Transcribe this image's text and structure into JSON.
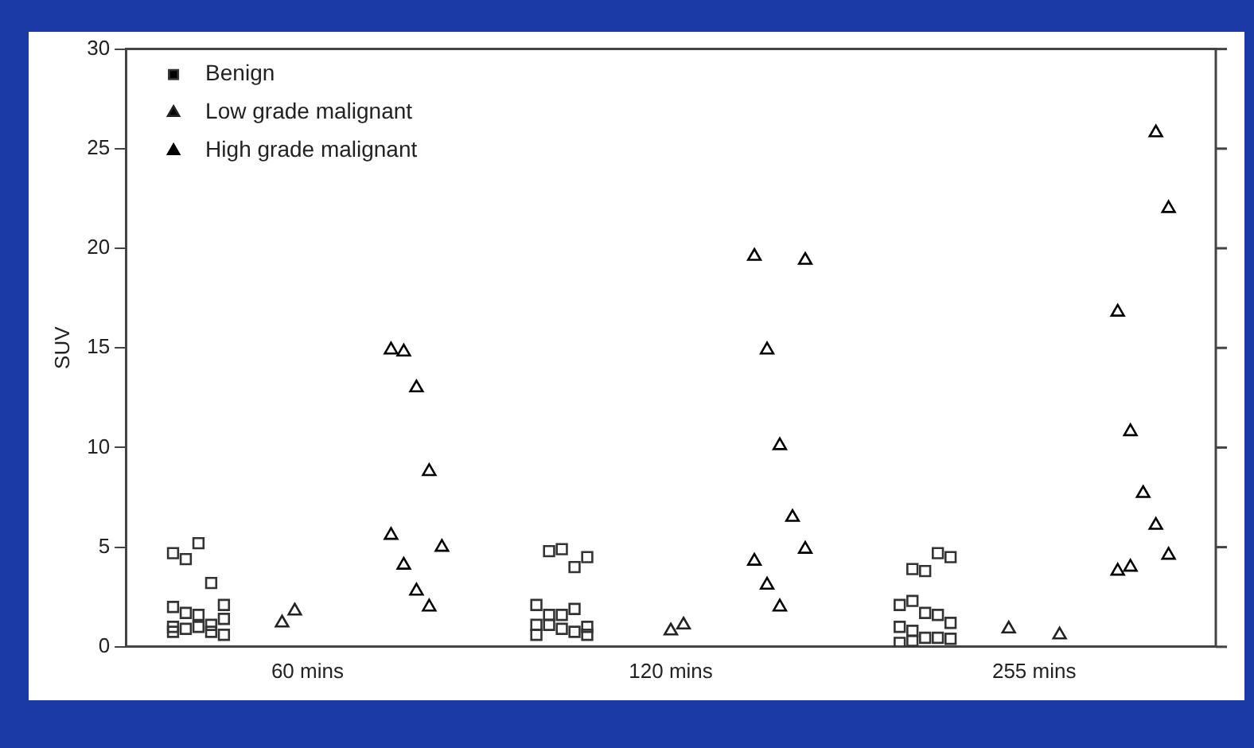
{
  "chart_data": {
    "type": "scatter",
    "ylabel": "SUV",
    "legend": "top left",
    "grid": false,
    "categories": [
      "60 mins",
      "120 mins",
      "255 mins"
    ],
    "ylim": [
      0,
      30
    ],
    "yticks": [
      0,
      5,
      10,
      15,
      20,
      25,
      30
    ],
    "series": [
      {
        "name": "Benign",
        "color": "#333333",
        "marker": "square",
        "x": [
          "60 mins",
          "60 mins",
          "60 mins",
          "60 mins",
          "60 mins",
          "60 mins",
          "60 mins",
          "60 mins",
          "60 mins",
          "60 mins",
          "60 mins",
          "60 mins",
          "60 mins",
          "60 mins",
          "60 mins",
          "60 mins",
          "120 mins",
          "120 mins",
          "120 mins",
          "120 mins",
          "120 mins",
          "120 mins",
          "120 mins",
          "120 mins",
          "120 mins",
          "120 mins",
          "120 mins",
          "120 mins",
          "120 mins",
          "120 mins",
          "120 mins",
          "255 mins",
          "255 mins",
          "255 mins",
          "255 mins",
          "255 mins",
          "255 mins",
          "255 mins",
          "255 mins",
          "255 mins",
          "255 mins",
          "255 mins",
          "255 mins",
          "255 mins",
          "255 mins",
          "255 mins",
          "255 mins"
        ],
        "values": [
          4.7,
          4.4,
          5.2,
          3.2,
          2.1,
          2.0,
          1.7,
          1.6,
          1.1,
          1.4,
          1.0,
          0.9,
          1.0,
          0.75,
          0.6,
          0.75,
          4.8,
          4.9,
          4.0,
          4.5,
          2.1,
          1.6,
          1.6,
          1.9,
          1.0,
          1.1,
          1.1,
          0.9,
          0.75,
          0.6,
          0.6,
          3.9,
          3.8,
          4.7,
          4.5,
          2.1,
          2.3,
          1.7,
          1.6,
          1.2,
          1.0,
          0.8,
          0.45,
          0.45,
          0.4,
          0.2,
          0.3
        ]
      },
      {
        "name": "Low grade malignant",
        "color": "#222222",
        "marker": "triangle",
        "x": [
          "60 mins",
          "60 mins",
          "120 mins",
          "120 mins",
          "255 mins",
          "255 mins"
        ],
        "values": [
          1.2,
          1.8,
          0.8,
          1.1,
          0.6,
          0.9
        ]
      },
      {
        "name": "High grade malignant",
        "color": "#000000",
        "marker": "triangle",
        "x": [
          "60 mins",
          "60 mins",
          "60 mins",
          "60 mins",
          "60 mins",
          "60 mins",
          "60 mins",
          "60 mins",
          "60 mins",
          "120 mins",
          "120 mins",
          "120 mins",
          "120 mins",
          "120 mins",
          "120 mins",
          "120 mins",
          "120 mins",
          "120 mins",
          "255 mins",
          "255 mins",
          "255 mins",
          "255 mins",
          "255 mins",
          "255 mins",
          "255 mins",
          "255 mins",
          "255 mins"
        ],
        "values": [
          14.9,
          14.8,
          13.0,
          8.8,
          5.0,
          5.6,
          4.1,
          2.8,
          2.0,
          19.4,
          19.6,
          14.9,
          10.1,
          6.5,
          4.9,
          4.3,
          3.1,
          2.0,
          25.8,
          22.0,
          16.8,
          10.8,
          7.7,
          6.1,
          4.6,
          3.8,
          4.0
        ]
      }
    ]
  }
}
